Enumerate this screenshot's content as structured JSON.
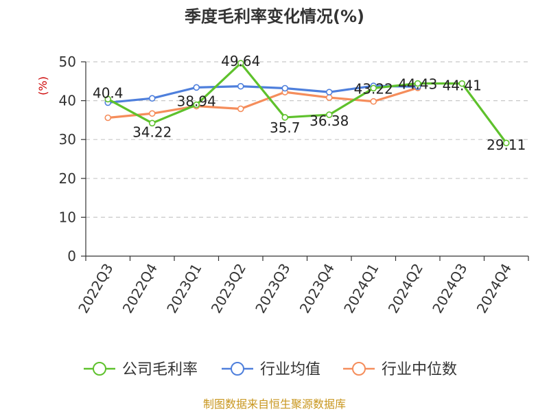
{
  "chart_data": {
    "type": "line",
    "title": "季度毛利率变化情况(%)",
    "ylabel": "(%)",
    "xlabel": "",
    "ylim": [
      0,
      50
    ],
    "yticks": [
      0,
      10,
      20,
      30,
      40,
      50
    ],
    "grid": true,
    "legend_position": "bottom",
    "categories": [
      "2022Q3",
      "2022Q4",
      "2023Q1",
      "2023Q2",
      "2023Q3",
      "2023Q4",
      "2024Q1",
      "2024Q2",
      "2024Q3",
      "2024Q4"
    ],
    "series": [
      {
        "name": "公司毛利率",
        "color": "#5ec12c",
        "values": [
          40.4,
          34.22,
          38.94,
          49.64,
          35.7,
          36.38,
          43.22,
          44.43,
          44.41,
          29.11
        ],
        "labels": [
          "40.4",
          "34.22",
          "38.94",
          "49.64",
          "35.7",
          "36.38",
          "43.22",
          "44.43",
          "44.41",
          "29.11"
        ]
      },
      {
        "name": "行业均值",
        "color": "#4e7fdc",
        "values": [
          39.5,
          40.6,
          43.4,
          43.7,
          43.2,
          42.2,
          43.8,
          43.6,
          null,
          null
        ]
      },
      {
        "name": "行业中位数",
        "color": "#f58d5b",
        "values": [
          35.6,
          36.7,
          38.6,
          37.9,
          42.2,
          40.8,
          39.8,
          43.3,
          null,
          null
        ]
      }
    ]
  },
  "source": "制图数据来自恒生聚源数据库"
}
